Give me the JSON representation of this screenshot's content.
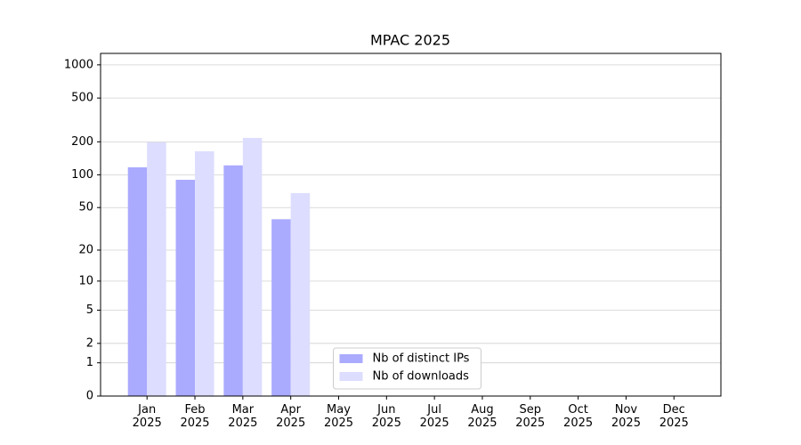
{
  "chart_data": {
    "type": "bar",
    "title": "MPAC 2025",
    "categories": [
      "Jan\n2025",
      "Feb\n2025",
      "Mar\n2025",
      "Apr\n2025",
      "May\n2025",
      "Jun\n2025",
      "Jul\n2025",
      "Aug\n2025",
      "Sep\n2025",
      "Oct\n2025",
      "Nov\n2025",
      "Dec\n2025"
    ],
    "series": [
      {
        "name": "Nb of distinct IPs",
        "color": "#aaaaff",
        "values": [
          117,
          90,
          122,
          39,
          null,
          null,
          null,
          null,
          null,
          null,
          null,
          null
        ]
      },
      {
        "name": "Nb of downloads",
        "color": "#ddddff",
        "values": [
          198,
          164,
          217,
          68,
          null,
          null,
          null,
          null,
          null,
          null,
          null,
          null
        ]
      }
    ],
    "ylim": [
      0,
      1270
    ],
    "yticks": [
      0,
      1,
      2,
      5,
      10,
      20,
      50,
      100,
      200,
      500,
      1000
    ],
    "yscale": "symlog",
    "grid": true,
    "legend": "lower center"
  }
}
